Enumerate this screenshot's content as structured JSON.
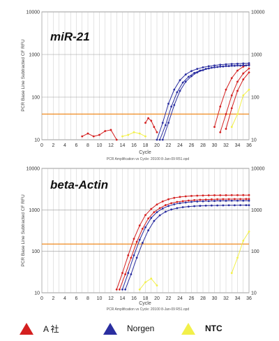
{
  "chart_data": [
    {
      "type": "line",
      "title": "miR-21",
      "ylabel": "PCR Base Line Subtracted CF RFU",
      "xlabel": "Cycle",
      "caption": "PCR Amplification vs Cycle: 20100 8-Jan-09 R51.opd",
      "yscale": "log",
      "ylim": [
        10,
        10000
      ],
      "xlim": [
        0,
        36
      ],
      "x_ticks": [
        "0",
        "2",
        "4",
        "6",
        "8",
        "10",
        "12",
        "14",
        "16",
        "18",
        "20",
        "22",
        "24",
        "26",
        "28",
        "30",
        "32",
        "34",
        "36"
      ],
      "y_ticks": [
        "10",
        "100",
        "1000",
        "10000"
      ],
      "threshold": 40,
      "series": [
        {
          "name": "A 社",
          "group": "A",
          "x": [
            30,
            31,
            32,
            33,
            34,
            35,
            36
          ],
          "y": [
            20,
            60,
            150,
            280,
            420,
            520,
            580
          ]
        },
        {
          "name": "A 社",
          "group": "A",
          "x": [
            31,
            32,
            33,
            34,
            35,
            36
          ],
          "y": [
            15,
            40,
            110,
            230,
            360,
            470
          ]
        },
        {
          "name": "A 社",
          "group": "A",
          "x": [
            32,
            33,
            34,
            35,
            36
          ],
          "y": [
            18,
            55,
            140,
            260,
            380
          ]
        },
        {
          "name": "A 社",
          "group": "A",
          "x": [
            7,
            8,
            9,
            10,
            11,
            12,
            13
          ],
          "y": [
            12,
            14,
            12,
            13,
            16,
            17,
            10
          ]
        },
        {
          "name": "A 社",
          "group": "A",
          "x": [
            18,
            18.5,
            19,
            19.5,
            20
          ],
          "y": [
            25,
            32,
            28,
            20,
            15
          ]
        },
        {
          "name": "Norgen",
          "group": "Norgen",
          "x": [
            20,
            21,
            22,
            23,
            24,
            25,
            26,
            27,
            28,
            29,
            30,
            31,
            32,
            33,
            34,
            35,
            36
          ],
          "y": [
            10,
            25,
            70,
            150,
            250,
            340,
            410,
            460,
            500,
            530,
            555,
            575,
            590,
            600,
            610,
            618,
            625
          ]
        },
        {
          "name": "Norgen",
          "group": "Norgen",
          "x": [
            20.5,
            21.5,
            22.5,
            23.5,
            24.5,
            25.5,
            26.5,
            27.5,
            28.5,
            29.5,
            30.5,
            31.5,
            32.5,
            33.5,
            34.5,
            35.5,
            36
          ],
          "y": [
            10,
            22,
            60,
            130,
            220,
            300,
            370,
            420,
            460,
            490,
            510,
            525,
            535,
            545,
            550,
            555,
            558
          ]
        },
        {
          "name": "Norgen",
          "group": "Norgen",
          "x": [
            21,
            22,
            23,
            24,
            25,
            26,
            27,
            28,
            29,
            30,
            31,
            32,
            33,
            34,
            35,
            36
          ],
          "y": [
            10,
            25,
            65,
            140,
            230,
            310,
            380,
            430,
            470,
            500,
            520,
            535,
            545,
            552,
            558,
            562
          ]
        },
        {
          "name": "NTC",
          "group": "NTC",
          "x": [
            14,
            15,
            16,
            17,
            18
          ],
          "y": [
            12,
            13,
            15,
            14,
            12
          ]
        },
        {
          "name": "NTC",
          "group": "NTC",
          "x": [
            33,
            34,
            35,
            36
          ],
          "y": [
            20,
            40,
            110,
            150
          ]
        }
      ]
    },
    {
      "type": "line",
      "title": "beta-Actin",
      "ylabel": "PCR Base Line Subtracted CF RFU",
      "xlabel": "Cycle",
      "caption": "PCR Amplification vs Cycle: 20100 8-Jan-09 R51.opd",
      "yscale": "log",
      "ylim": [
        10,
        10000
      ],
      "xlim": [
        0,
        36
      ],
      "x_ticks": [
        "0",
        "2",
        "4",
        "6",
        "8",
        "10",
        "12",
        "14",
        "16",
        "18",
        "20",
        "22",
        "24",
        "26",
        "28",
        "30",
        "32",
        "34",
        "36"
      ],
      "y_ticks": [
        "10",
        "100",
        "1000",
        "10000"
      ],
      "threshold": 150,
      "series": [
        {
          "name": "A 社",
          "group": "A",
          "x": [
            13,
            14,
            15,
            16,
            17,
            18,
            19,
            20,
            21,
            22,
            23,
            24,
            25,
            26,
            27,
            28,
            29,
            30,
            31,
            32,
            33,
            34,
            35,
            36
          ],
          "y": [
            12,
            30,
            80,
            200,
            420,
            750,
            1050,
            1350,
            1600,
            1800,
            1950,
            2050,
            2120,
            2170,
            2200,
            2220,
            2240,
            2250,
            2255,
            2260,
            2265,
            2268,
            2270,
            2270
          ]
        },
        {
          "name": "A 社",
          "group": "A",
          "x": [
            13.5,
            14.5,
            15.5,
            16.5,
            17.5,
            18.5,
            19.5,
            20.5,
            21.5,
            22.5,
            23.5,
            24.5,
            25.5,
            26.5,
            27.5,
            28.5,
            29.5,
            30.5,
            31.5,
            32.5,
            33.5,
            34.5,
            35.5,
            36
          ],
          "y": [
            12,
            28,
            70,
            170,
            350,
            620,
            880,
            1100,
            1300,
            1450,
            1550,
            1620,
            1680,
            1720,
            1750,
            1770,
            1790,
            1800,
            1810,
            1815,
            1820,
            1822,
            1825,
            1825
          ]
        },
        {
          "name": "Norgen",
          "group": "Norgen",
          "x": [
            14,
            15,
            16,
            17,
            18,
            19,
            20,
            21,
            22,
            23,
            24,
            25,
            26,
            27,
            28,
            29,
            30,
            31,
            32,
            33,
            34,
            35,
            36
          ],
          "y": [
            12,
            30,
            80,
            190,
            380,
            640,
            880,
            1080,
            1240,
            1360,
            1450,
            1510,
            1560,
            1590,
            1610,
            1630,
            1640,
            1650,
            1655,
            1660,
            1662,
            1665,
            1665
          ]
        },
        {
          "name": "Norgen",
          "group": "Norgen",
          "x": [
            14.5,
            15.5,
            16.5,
            17.5,
            18.5,
            19.5,
            20.5,
            21.5,
            22.5,
            23.5,
            24.5,
            25.5,
            26.5,
            27.5,
            28.5,
            29.5,
            30.5,
            31.5,
            32.5,
            33.5,
            34.5,
            35.5,
            36
          ],
          "y": [
            12,
            28,
            70,
            160,
            320,
            540,
            740,
            900,
            1020,
            1100,
            1160,
            1200,
            1230,
            1250,
            1265,
            1275,
            1280,
            1285,
            1290,
            1292,
            1295,
            1297,
            1297
          ]
        },
        {
          "name": "NTC",
          "group": "NTC",
          "x": [
            17,
            18,
            19,
            20
          ],
          "y": [
            12,
            18,
            22,
            15
          ]
        },
        {
          "name": "NTC",
          "group": "NTC",
          "x": [
            33,
            34,
            35,
            36
          ],
          "y": [
            30,
            70,
            180,
            300
          ]
        }
      ]
    }
  ],
  "legend": [
    {
      "label": "A 社",
      "color": "#d41f1f"
    },
    {
      "label": "Norgen",
      "color": "#2a2ea0"
    },
    {
      "label": "NTC",
      "color": "#f2f04a"
    }
  ],
  "colors": {
    "A": "#d41f1f",
    "Norgen": "#2a2ea0",
    "NTC": "#f2f04a",
    "threshold": "#f08a1e",
    "grid": "#c8c8c8"
  }
}
